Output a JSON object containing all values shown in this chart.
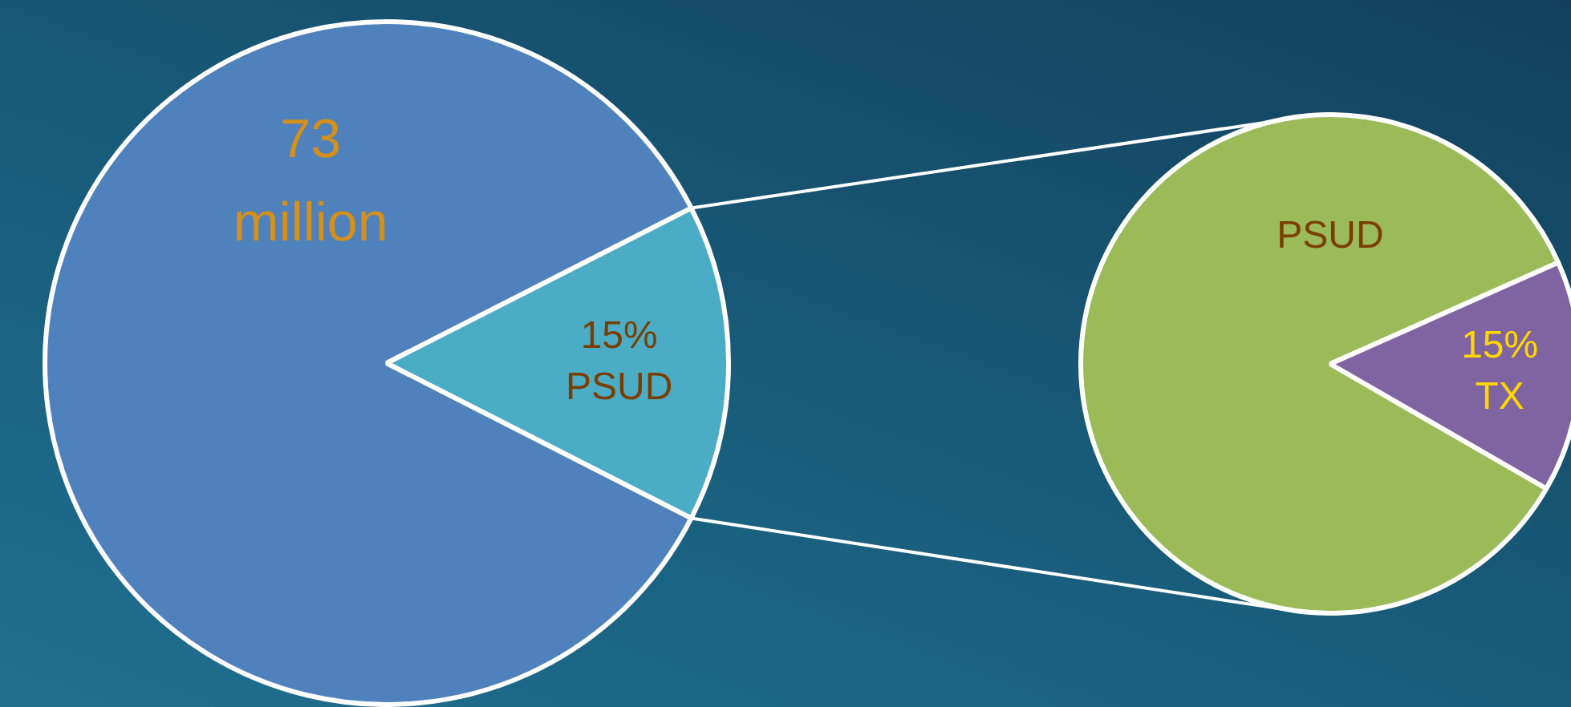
{
  "chart_data": [
    {
      "type": "pie",
      "categories": [
        null,
        "PSUD"
      ],
      "values": [
        85,
        15
      ],
      "colors": [
        "#4f81bd",
        "#4bacc6"
      ],
      "value_labels": [
        null,
        "15%"
      ],
      "annotations": [
        "73 million"
      ]
    },
    {
      "type": "pie",
      "categories": [
        "PSUD",
        "TX"
      ],
      "values": [
        85,
        15
      ],
      "colors": [
        "#9bbb59",
        "#8064a2"
      ],
      "value_labels": [
        null,
        "15%"
      ]
    }
  ]
}
